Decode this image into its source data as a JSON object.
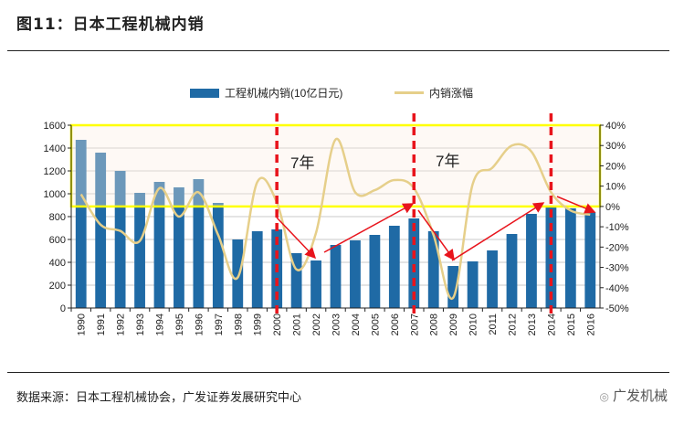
{
  "title": "图11：日本工程机械内销",
  "source": "数据来源：日本工程机械协会，广发证券发展研究中心",
  "watermark": {
    "icon": "wechat-icon",
    "text": "广发机械"
  },
  "chart_data": {
    "type": "bar+line",
    "categories": [
      "1990",
      "1991",
      "1992",
      "1993",
      "1994",
      "1995",
      "1996",
      "1997",
      "1998",
      "1999",
      "2000",
      "2001",
      "2002",
      "2003",
      "2004",
      "2005",
      "2006",
      "2007",
      "2008",
      "2009",
      "2010",
      "2011",
      "2012",
      "2013",
      "2014",
      "2015",
      "2016"
    ],
    "series": [
      {
        "name": "工程机械内销(10亿日元)",
        "type": "bar",
        "axis": "left",
        "color": "#1f6aa5",
        "values": [
          1472,
          1360,
          1200,
          1008,
          1104,
          1056,
          1128,
          920,
          600,
          672,
          688,
          480,
          416,
          552,
          592,
          640,
          720,
          784,
          672,
          368,
          408,
          504,
          648,
          824,
          888,
          872,
          840
        ]
      },
      {
        "name": "内销涨幅",
        "type": "line",
        "axis": "right",
        "color": "#e6cf8a",
        "values": [
          6,
          -9,
          -12,
          -17,
          9,
          -5,
          7,
          -14,
          -35,
          12,
          2,
          -31,
          -13,
          33,
          7,
          8,
          13,
          9,
          -14,
          -45,
          11,
          19,
          30,
          27,
          7,
          -2,
          -4
        ]
      }
    ],
    "left_axis": {
      "range": [
        0,
        1600
      ],
      "ticks": [
        "0",
        "200",
        "400",
        "600",
        "800",
        "1000",
        "1200",
        "1400",
        "1600"
      ]
    },
    "right_axis": {
      "range": [
        -50,
        40
      ],
      "ticks": [
        "-50%",
        "-40%",
        "-30%",
        "-20%",
        "-10%",
        "0%",
        "10%",
        "20%",
        "30%",
        "40%"
      ]
    },
    "grid": true,
    "legend": "top",
    "cycle_markers": [
      "2000",
      "2007",
      "2014"
    ],
    "annotations": [
      "7年",
      "7年"
    ],
    "highlight_band": {
      "right_axis_from": 0,
      "right_axis_to": 40,
      "color": "#ffff00"
    }
  }
}
